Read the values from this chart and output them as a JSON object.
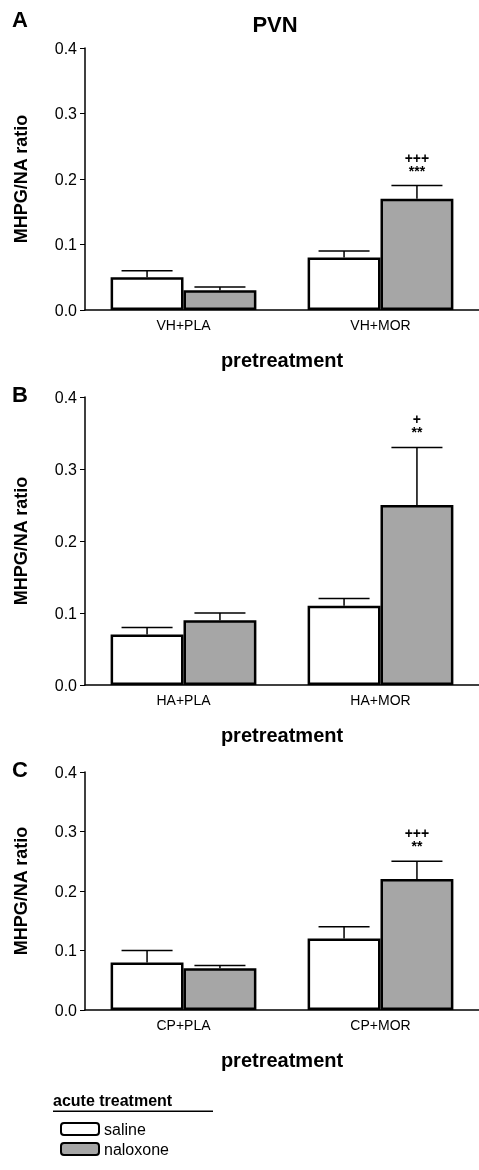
{
  "chart_data": [
    {
      "type": "bar",
      "title": "PVN",
      "xlabel": "pretreatment",
      "ylabel": "MHPG/NA ratio",
      "categories": [
        "VH+PLA",
        "VH+MOR"
      ],
      "series": [
        {
          "color": "#ffffff",
          "values": [
            0.05,
            0.08
          ],
          "errors": [
            [
              0.05,
              0.06
            ],
            [
              0.08,
              0.09
            ]
          ]
        },
        {
          "color": "#a6a6a6",
          "values": [
            0.03,
            0.17
          ],
          "errors": [
            [
              0.03,
              0.035
            ],
            [
              0.17,
              0.19
            ]
          ]
        }
      ],
      "ylim": [
        0,
        0.4
      ],
      "yticks": [
        {
          "value": 0,
          "label": "0.0"
        },
        {
          "value": 0.1,
          "label": "0.1"
        },
        {
          "value": 0.2,
          "label": "0.2"
        },
        {
          "value": 0.3,
          "label": "0.3"
        },
        {
          "value": 0.4,
          "label": "0.4"
        }
      ],
      "grid": false,
      "legend": false,
      "annotations": [
        "A",
        "***",
        "+++"
      ]
    },
    {
      "type": "bar",
      "xlabel": "pretreatment",
      "ylabel": "MHPG/NA ratio",
      "categories": [
        "HA+PLA",
        "HA+MOR"
      ],
      "series": [
        {
          "color": "#ffffff",
          "values": [
            0.07,
            0.11
          ],
          "errors": [
            [
              0.07,
              0.08
            ],
            [
              0.11,
              0.12
            ]
          ]
        },
        {
          "color": "#a6a6a6",
          "values": [
            0.09,
            0.25
          ],
          "errors": [
            [
              0.09,
              0.1
            ],
            [
              0.25,
              0.33
            ]
          ]
        }
      ],
      "ylim": [
        0,
        0.4
      ],
      "yticks": [
        {
          "value": 0,
          "label": "0.0"
        },
        {
          "value": 0.1,
          "label": "0.1"
        },
        {
          "value": 0.2,
          "label": "0.2"
        },
        {
          "value": 0.3,
          "label": "0.3"
        },
        {
          "value": 0.4,
          "label": "0.4"
        }
      ],
      "grid": false,
      "legend": false,
      "annotations": [
        "B",
        "**",
        "+"
      ]
    },
    {
      "type": "bar",
      "xlabel": "pretreatment",
      "ylabel": "MHPG/NA ratio",
      "categories": [
        "CP+PLA",
        "CP+MOR"
      ],
      "legend_title": "acute treatment",
      "series": [
        {
          "name": "saline",
          "color": "#ffffff",
          "values": [
            0.08,
            0.12
          ],
          "errors": [
            [
              0.08,
              0.1
            ],
            [
              0.12,
              0.14
            ]
          ]
        },
        {
          "name": "naloxone",
          "color": "#a6a6a6",
          "values": [
            0.07,
            0.22
          ],
          "errors": [
            [
              0.07,
              0.075
            ],
            [
              0.22,
              0.25
            ]
          ]
        }
      ],
      "ylim": [
        0,
        0.4
      ],
      "yticks": [
        {
          "value": 0,
          "label": "0.0"
        },
        {
          "value": 0.1,
          "label": "0.1"
        },
        {
          "value": 0.2,
          "label": "0.2"
        },
        {
          "value": 0.3,
          "label": "0.3"
        },
        {
          "value": 0.4,
          "label": "0.4"
        }
      ],
      "grid": false,
      "legend": "bottom left",
      "annotations": [
        "C",
        "**",
        "+++"
      ]
    }
  ]
}
